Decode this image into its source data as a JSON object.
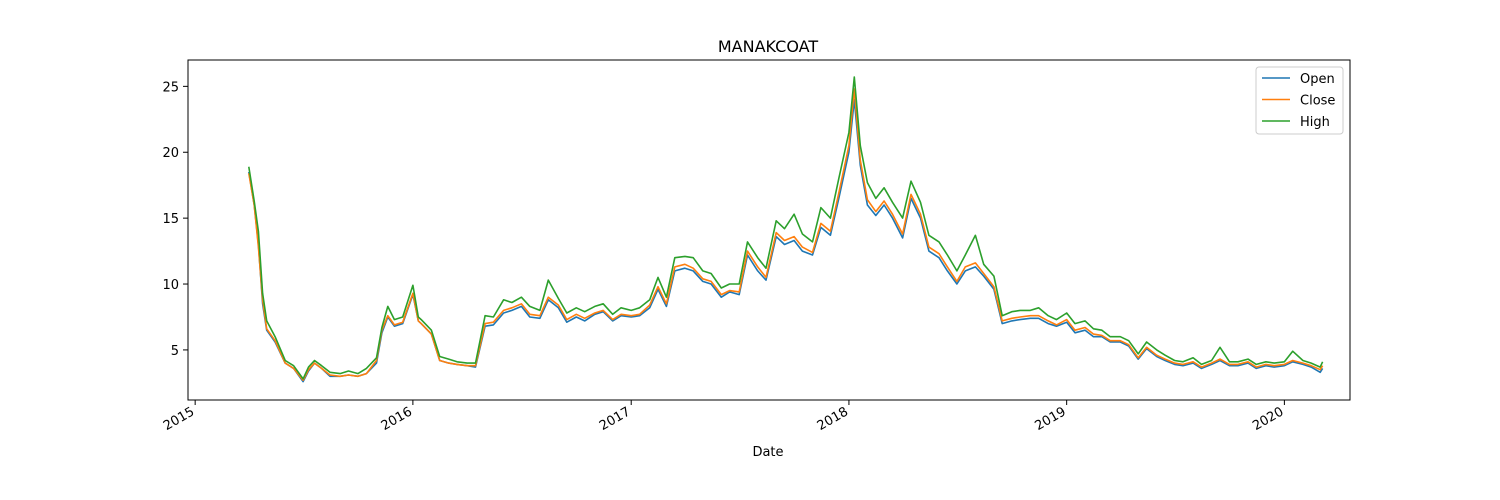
{
  "chart_data": {
    "type": "line",
    "title": "MANAKCOAT",
    "xlabel": "Date",
    "ylabel": "",
    "x_range": [
      "2014-12-20",
      "2020-04-20"
    ],
    "ylim": [
      1.2,
      27.0
    ],
    "x_ticks": [
      "2015",
      "2016",
      "2017",
      "2018",
      "2019",
      "2020"
    ],
    "y_ticks": [
      5,
      10,
      15,
      20,
      25
    ],
    "grid": false,
    "legend_position": "top-right",
    "x": [
      "2015-04-01",
      "2015-04-10",
      "2015-04-17",
      "2015-04-24",
      "2015-05-01",
      "2015-05-15",
      "2015-06-01",
      "2015-06-15",
      "2015-07-01",
      "2015-07-10",
      "2015-07-20",
      "2015-08-01",
      "2015-08-15",
      "2015-09-01",
      "2015-09-15",
      "2015-10-01",
      "2015-10-15",
      "2015-11-01",
      "2015-11-10",
      "2015-11-20",
      "2015-12-01",
      "2015-12-15",
      "2016-01-01",
      "2016-01-10",
      "2016-01-15",
      "2016-02-01",
      "2016-02-15",
      "2016-03-01",
      "2016-03-15",
      "2016-04-01",
      "2016-04-15",
      "2016-05-01",
      "2016-05-15",
      "2016-06-01",
      "2016-06-15",
      "2016-07-01",
      "2016-07-15",
      "2016-08-01",
      "2016-08-15",
      "2016-09-01",
      "2016-09-15",
      "2016-10-01",
      "2016-10-15",
      "2016-11-01",
      "2016-11-15",
      "2016-12-01",
      "2016-12-15",
      "2017-01-01",
      "2017-01-15",
      "2017-02-01",
      "2017-02-15",
      "2017-03-01",
      "2017-03-15",
      "2017-04-01",
      "2017-04-15",
      "2017-05-01",
      "2017-05-15",
      "2017-06-01",
      "2017-06-15",
      "2017-07-01",
      "2017-07-15",
      "2017-08-01",
      "2017-08-15",
      "2017-09-01",
      "2017-09-15",
      "2017-10-01",
      "2017-10-15",
      "2017-11-01",
      "2017-11-15",
      "2017-12-01",
      "2017-12-15",
      "2018-01-01",
      "2018-01-10",
      "2018-01-20",
      "2018-02-01",
      "2018-02-15",
      "2018-03-01",
      "2018-03-15",
      "2018-04-01",
      "2018-04-15",
      "2018-05-01",
      "2018-05-15",
      "2018-06-01",
      "2018-06-15",
      "2018-07-01",
      "2018-07-15",
      "2018-08-01",
      "2018-08-15",
      "2018-09-01",
      "2018-09-15",
      "2018-10-01",
      "2018-10-15",
      "2018-11-01",
      "2018-11-15",
      "2018-12-01",
      "2018-12-15",
      "2019-01-01",
      "2019-01-15",
      "2019-02-01",
      "2019-02-15",
      "2019-03-01",
      "2019-03-15",
      "2019-04-01",
      "2019-04-15",
      "2019-05-01",
      "2019-05-15",
      "2019-06-01",
      "2019-06-15",
      "2019-07-01",
      "2019-07-15",
      "2019-08-01",
      "2019-08-15",
      "2019-09-01",
      "2019-09-15",
      "2019-10-01",
      "2019-10-15",
      "2019-11-01",
      "2019-11-15",
      "2019-12-01",
      "2019-12-15",
      "2020-01-01",
      "2020-01-15",
      "2020-02-01",
      "2020-02-15",
      "2020-03-01",
      "2020-03-05"
    ],
    "series": [
      {
        "name": "Open",
        "color": "#1f77b4",
        "values": [
          18.5,
          16.0,
          13.0,
          8.5,
          6.5,
          5.6,
          4.0,
          3.6,
          2.6,
          3.4,
          4.0,
          3.6,
          3.0,
          3.0,
          3.1,
          3.0,
          3.2,
          4.0,
          6.3,
          7.5,
          6.8,
          7.0,
          9.2,
          7.2,
          7.0,
          6.2,
          4.2,
          4.0,
          3.9,
          3.8,
          3.7,
          6.8,
          6.9,
          7.8,
          8.0,
          8.3,
          7.5,
          7.4,
          8.8,
          8.2,
          7.1,
          7.5,
          7.2,
          7.7,
          7.9,
          7.2,
          7.6,
          7.5,
          7.6,
          8.2,
          9.6,
          8.3,
          11.0,
          11.2,
          11.0,
          10.2,
          10.0,
          9.0,
          9.4,
          9.2,
          12.2,
          11.0,
          10.3,
          13.6,
          13.0,
          13.3,
          12.5,
          12.2,
          14.3,
          13.7,
          16.5,
          20.0,
          24.0,
          19.0,
          16.0,
          15.2,
          16.0,
          15.0,
          13.5,
          16.5,
          15.0,
          12.5,
          12.0,
          11.0,
          10.0,
          11.0,
          11.3,
          10.6,
          9.6,
          7.0,
          7.2,
          7.3,
          7.4,
          7.4,
          7.0,
          6.8,
          7.1,
          6.3,
          6.5,
          6.0,
          6.0,
          5.6,
          5.6,
          5.3,
          4.3,
          5.1,
          4.5,
          4.2,
          3.9,
          3.8,
          4.0,
          3.6,
          3.9,
          4.2,
          3.8,
          3.8,
          4.0,
          3.6,
          3.8,
          3.7,
          3.8,
          4.1,
          3.9,
          3.7,
          3.3,
          3.6
        ]
      },
      {
        "name": "Close",
        "color": "#ff7f0e",
        "values": [
          18.4,
          16.0,
          12.8,
          8.8,
          6.6,
          5.7,
          4.0,
          3.6,
          2.7,
          3.5,
          4.0,
          3.6,
          3.1,
          3.0,
          3.1,
          3.0,
          3.2,
          4.2,
          6.5,
          7.6,
          6.9,
          7.1,
          9.3,
          7.2,
          7.0,
          6.2,
          4.2,
          4.0,
          3.9,
          3.8,
          3.8,
          7.0,
          7.1,
          8.0,
          8.2,
          8.5,
          7.7,
          7.6,
          9.0,
          8.4,
          7.3,
          7.7,
          7.4,
          7.8,
          8.0,
          7.3,
          7.7,
          7.6,
          7.7,
          8.4,
          9.8,
          8.5,
          11.3,
          11.5,
          11.2,
          10.4,
          10.2,
          9.2,
          9.5,
          9.4,
          12.5,
          11.3,
          10.5,
          13.9,
          13.3,
          13.6,
          12.8,
          12.4,
          14.6,
          14.0,
          16.9,
          20.5,
          24.8,
          19.4,
          16.4,
          15.5,
          16.3,
          15.3,
          13.8,
          16.8,
          15.3,
          12.8,
          12.3,
          11.3,
          10.2,
          11.3,
          11.6,
          10.8,
          9.8,
          7.2,
          7.4,
          7.5,
          7.6,
          7.6,
          7.2,
          6.9,
          7.3,
          6.5,
          6.7,
          6.2,
          6.1,
          5.7,
          5.7,
          5.4,
          4.4,
          5.2,
          4.6,
          4.3,
          4.0,
          3.9,
          4.1,
          3.7,
          4.0,
          4.3,
          3.9,
          3.9,
          4.1,
          3.7,
          3.9,
          3.8,
          3.9,
          4.2,
          4.0,
          3.8,
          3.5,
          3.8
        ]
      },
      {
        "name": "High",
        "color": "#2ca02c",
        "values": [
          18.9,
          16.3,
          14.0,
          9.3,
          7.2,
          6.0,
          4.2,
          3.8,
          2.8,
          3.7,
          4.2,
          3.8,
          3.3,
          3.2,
          3.4,
          3.2,
          3.6,
          4.4,
          6.7,
          8.3,
          7.3,
          7.5,
          9.9,
          7.5,
          7.3,
          6.5,
          4.5,
          4.3,
          4.1,
          4.0,
          4.0,
          7.6,
          7.5,
          8.8,
          8.6,
          9.0,
          8.3,
          8.0,
          10.3,
          8.9,
          7.8,
          8.2,
          7.9,
          8.3,
          8.5,
          7.7,
          8.2,
          8.0,
          8.2,
          8.8,
          10.5,
          9.0,
          12.0,
          12.1,
          12.0,
          11.0,
          10.8,
          9.7,
          10.0,
          10.0,
          13.2,
          12.0,
          11.2,
          14.8,
          14.2,
          15.3,
          13.8,
          13.2,
          15.8,
          15.0,
          18.0,
          21.5,
          25.7,
          20.5,
          17.7,
          16.5,
          17.3,
          16.2,
          15.0,
          17.8,
          16.2,
          13.7,
          13.2,
          12.2,
          11.0,
          12.2,
          13.7,
          11.5,
          10.6,
          7.6,
          7.9,
          8.0,
          8.0,
          8.2,
          7.6,
          7.3,
          7.8,
          7.0,
          7.2,
          6.6,
          6.5,
          6.0,
          6.0,
          5.7,
          4.7,
          5.6,
          5.0,
          4.6,
          4.2,
          4.1,
          4.4,
          3.9,
          4.2,
          5.2,
          4.1,
          4.1,
          4.3,
          3.9,
          4.1,
          4.0,
          4.1,
          4.9,
          4.2,
          4.0,
          3.7,
          4.1
        ]
      }
    ]
  }
}
